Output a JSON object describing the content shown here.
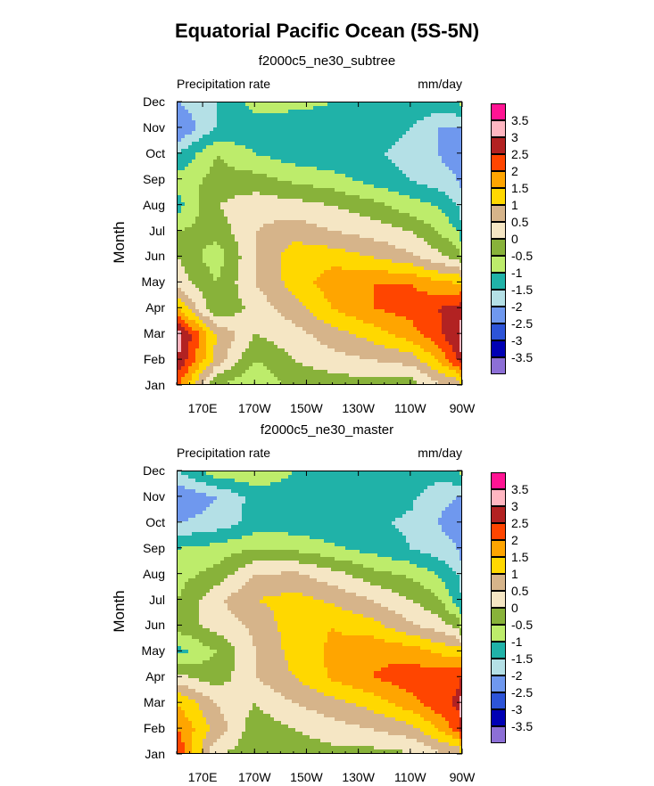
{
  "title": "Equatorial Pacific Ocean (5S-5N)",
  "chart_data": [
    {
      "type": "heatmap",
      "title": "f2000c5_ne30_subtree",
      "left_string": "Precipitation rate",
      "right_string": "mm/day",
      "ylabel": "Month",
      "y_ticks": [
        "Jan",
        "Feb",
        "Mar",
        "Apr",
        "May",
        "Jun",
        "Jul",
        "Aug",
        "Sep",
        "Oct",
        "Nov",
        "Dec"
      ],
      "x_ticks": [
        "170E",
        "170W",
        "150W",
        "130W",
        "110W",
        "90W"
      ],
      "x_tick_lon": [
        170,
        190,
        210,
        230,
        250,
        270
      ],
      "xlim": [
        160,
        270
      ],
      "ylim": [
        1,
        12
      ],
      "colorbar_labels": [
        "3.5",
        "3",
        "2.5",
        "2",
        "1.5",
        "1",
        "0.5",
        "0",
        "-0.5",
        "-1",
        "-1.5",
        "-2",
        "-2.5",
        "-3",
        "-3.5"
      ],
      "field": {
        "lon": [
          160,
          175,
          190,
          205,
          220,
          235,
          250,
          260,
          268,
          270
        ],
        "months": [
          1,
          2,
          3,
          4,
          5,
          6,
          7,
          8,
          9,
          10,
          11,
          12
        ],
        "values": [
          [
            2.0,
            -0.5,
            -1.0,
            -0.3,
            -0.3,
            -0.2,
            -0.3,
            0.3,
            0.5,
            1.0
          ],
          [
            3.0,
            0.8,
            -0.5,
            0.0,
            0.3,
            0.5,
            0.7,
            1.5,
            2.5,
            3.0
          ],
          [
            3.3,
            1.0,
            0.0,
            0.3,
            0.8,
            1.2,
            1.8,
            2.3,
            3.0,
            3.6
          ],
          [
            1.5,
            -0.5,
            0.2,
            0.8,
            1.5,
            2.0,
            2.2,
            2.5,
            2.7,
            2.8
          ],
          [
            0.3,
            -0.5,
            0.5,
            1.2,
            1.8,
            2.0,
            2.0,
            1.6,
            1.5,
            1.5
          ],
          [
            0.0,
            -0.8,
            0.5,
            1.3,
            1.3,
            1.0,
            0.6,
            0.2,
            -0.2,
            -0.5
          ],
          [
            -0.5,
            -0.3,
            0.5,
            0.8,
            0.5,
            0.3,
            0.0,
            -0.5,
            -1.0,
            -1.5
          ],
          [
            -1.2,
            0.0,
            0.3,
            0.2,
            0.0,
            -0.3,
            -0.8,
            -1.0,
            -1.5,
            -1.8
          ],
          [
            -0.8,
            -0.3,
            -0.3,
            -0.6,
            -0.8,
            -1.2,
            -1.5,
            -1.8,
            -2.0,
            -2.2
          ],
          [
            -1.5,
            -0.5,
            -1.0,
            -1.3,
            -1.4,
            -1.4,
            -1.7,
            -2.0,
            -2.2,
            -2.3
          ],
          [
            -2.5,
            -1.5,
            -1.3,
            -1.2,
            -1.2,
            -1.2,
            -1.5,
            -2.0,
            -2.0,
            -2.0
          ],
          [
            -2.0,
            -1.5,
            -0.8,
            -0.9,
            -1.0,
            -1.0,
            -1.1,
            -1.2,
            -1.0,
            -0.8
          ]
        ]
      }
    },
    {
      "type": "heatmap",
      "title": "f2000c5_ne30_master",
      "left_string": "Precipitation rate",
      "right_string": "mm/day",
      "ylabel": "Month",
      "y_ticks": [
        "Jan",
        "Feb",
        "Mar",
        "Apr",
        "May",
        "Jun",
        "Jul",
        "Aug",
        "Sep",
        "Oct",
        "Nov",
        "Dec"
      ],
      "x_ticks": [
        "170E",
        "170W",
        "150W",
        "130W",
        "110W",
        "90W"
      ],
      "x_tick_lon": [
        170,
        190,
        210,
        230,
        250,
        270
      ],
      "xlim": [
        160,
        270
      ],
      "ylim": [
        1,
        12
      ],
      "colorbar_labels": [
        "3.5",
        "3",
        "2.5",
        "2",
        "1.5",
        "1",
        "0.5",
        "0",
        "-0.5",
        "-1",
        "-1.5",
        "-2",
        "-2.5",
        "-3",
        "-3.5"
      ],
      "field": {
        "lon": [
          160,
          175,
          190,
          205,
          220,
          235,
          250,
          260,
          268,
          270
        ],
        "months": [
          1,
          2,
          3,
          4,
          5,
          6,
          7,
          8,
          9,
          10,
          11,
          12
        ],
        "values": [
          [
            2.5,
            0.0,
            -0.3,
            -0.3,
            -0.2,
            -0.2,
            -0.1,
            0.3,
            0.5,
            1.0
          ],
          [
            2.0,
            0.8,
            -0.3,
            0.0,
            0.3,
            0.5,
            0.8,
            1.5,
            2.2,
            3.0
          ],
          [
            1.5,
            0.5,
            0.0,
            0.5,
            0.8,
            1.2,
            1.8,
            2.3,
            2.6,
            3.6
          ],
          [
            0.2,
            -0.3,
            0.5,
            1.0,
            1.6,
            2.0,
            2.3,
            2.3,
            2.4,
            2.5
          ],
          [
            -1.2,
            -0.5,
            0.5,
            1.2,
            1.6,
            1.9,
            1.8,
            1.4,
            1.3,
            1.3
          ],
          [
            -0.3,
            0.2,
            0.6,
            1.3,
            1.5,
            1.2,
            0.6,
            0.3,
            -0.2,
            -0.8
          ],
          [
            -0.5,
            0.4,
            1.0,
            1.2,
            0.9,
            0.5,
            0.0,
            -0.4,
            -1.2,
            -1.5
          ],
          [
            -0.7,
            -0.3,
            0.5,
            0.6,
            0.2,
            -0.3,
            -0.6,
            -1.0,
            -1.5,
            -2.0
          ],
          [
            -1.0,
            -0.8,
            -0.5,
            -0.6,
            -0.9,
            -1.2,
            -1.5,
            -1.8,
            -2.0,
            -2.2
          ],
          [
            -2.0,
            -1.8,
            -1.3,
            -1.3,
            -1.4,
            -1.4,
            -1.6,
            -2.0,
            -2.2,
            -2.3
          ],
          [
            -2.5,
            -2.0,
            -1.3,
            -1.2,
            -1.2,
            -1.2,
            -1.4,
            -1.9,
            -2.0,
            -2.0
          ],
          [
            -1.5,
            -0.7,
            -0.6,
            -1.0,
            -1.0,
            -1.0,
            -1.1,
            -1.2,
            -1.0,
            -0.8
          ]
        ]
      }
    }
  ],
  "palette": {
    "bounds": [
      -3.5,
      -3,
      -2.5,
      -2,
      -1.5,
      -1,
      -0.5,
      0,
      0.5,
      1,
      1.5,
      2,
      2.5,
      3,
      3.5
    ],
    "colors": [
      "#8c6fd6",
      "#0000b4",
      "#2d54d8",
      "#6f98ee",
      "#b4e0e6",
      "#20b2a8",
      "#bdec6b",
      "#88b23a",
      "#f5e6c4",
      "#d6b48a",
      "#ffd800",
      "#ffa500",
      "#ff4500",
      "#b22222",
      "#ffb6c1",
      "#ff1493"
    ]
  }
}
